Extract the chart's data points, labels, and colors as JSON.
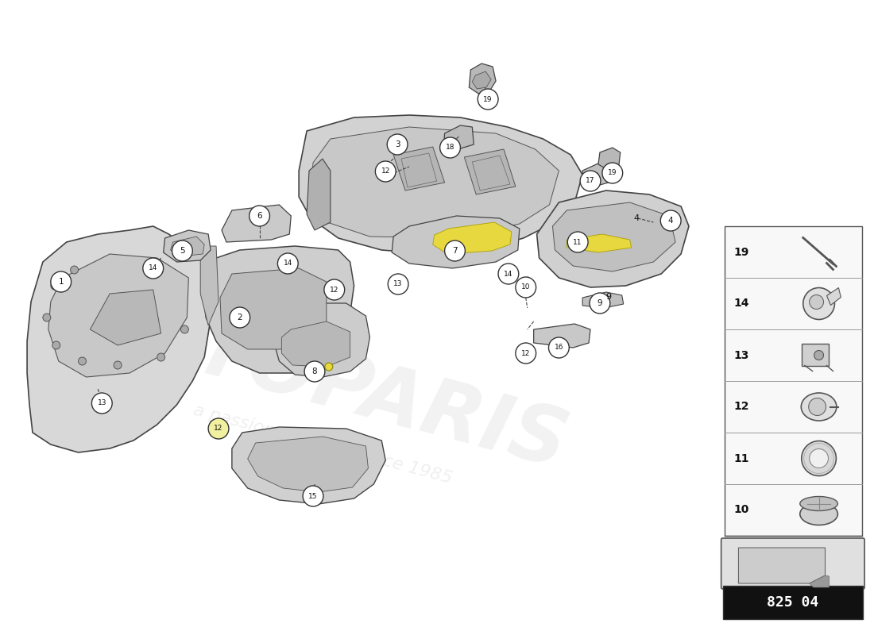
{
  "bg_color": "#ffffff",
  "watermark1": "AUTOPARIS",
  "watermark2": "a passion for parts since 1985",
  "part_number": "825 04",
  "fig_w": 11.0,
  "fig_h": 8.0,
  "dpi": 100,
  "legend_items": [
    {
      "num": "19",
      "shape": "screw"
    },
    {
      "num": "14",
      "shape": "push_clip"
    },
    {
      "num": "13",
      "shape": "bracket_clip"
    },
    {
      "num": "12",
      "shape": "oval_push"
    },
    {
      "num": "11",
      "shape": "flat_ring"
    },
    {
      "num": "10",
      "shape": "dome_grommet"
    }
  ],
  "panel_color": "#d4d4d4",
  "panel_edge": "#444444",
  "panel_light": "#e8e8e8",
  "panel_dark": "#b8b8b8"
}
